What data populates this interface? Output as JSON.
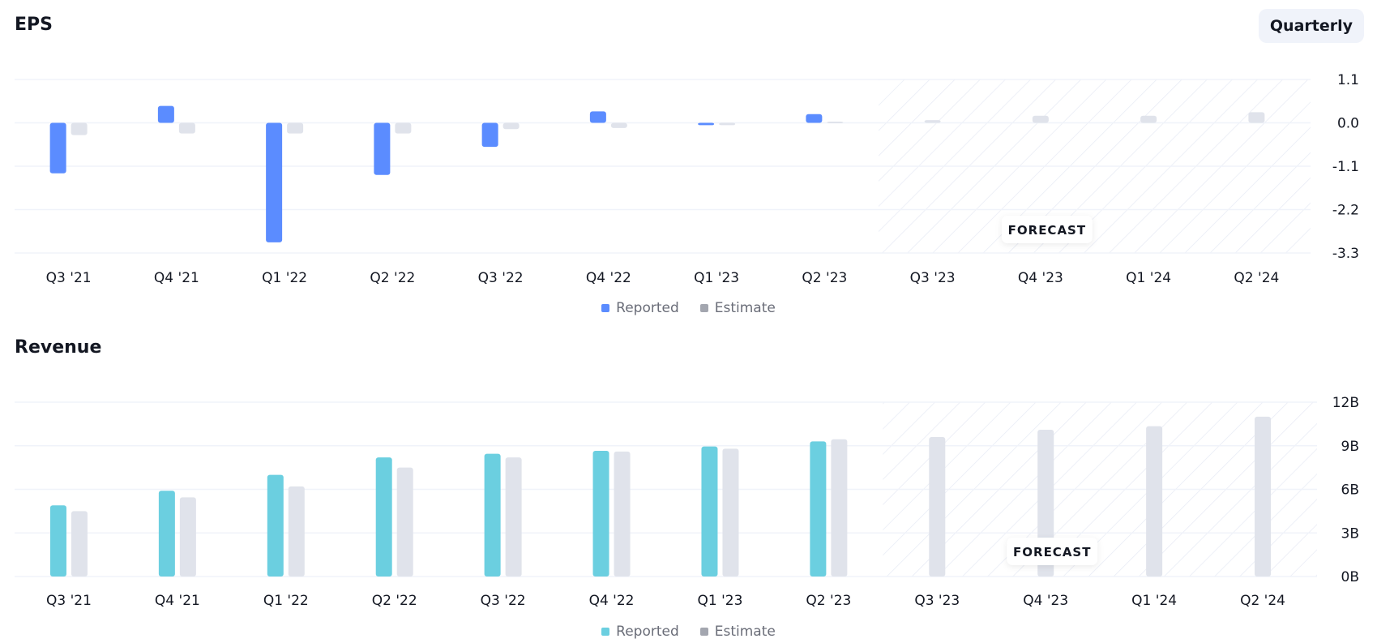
{
  "header": {
    "period_toggle": "Quarterly"
  },
  "colors": {
    "eps_reported": "#5b8cff",
    "revenue_reported": "#6bcfe0",
    "estimate": "#e0e3eb",
    "estimate_legend": "#a3a6af",
    "grid": "#f0f3fa",
    "hatch": "#e8ebf5"
  },
  "chart_data": [
    {
      "type": "bar",
      "title": "EPS",
      "categories": [
        "Q3 '21",
        "Q4 '21",
        "Q1 '22",
        "Q2 '22",
        "Q3 '22",
        "Q4 '22",
        "Q1 '23",
        "Q2 '23",
        "Q3 '23",
        "Q4 '23",
        "Q1 '24",
        "Q2 '24"
      ],
      "series": [
        {
          "name": "Reported",
          "values": [
            -1.28,
            0.43,
            -3.03,
            -1.32,
            -0.61,
            0.29,
            -0.06,
            0.22,
            null,
            null,
            null,
            null
          ]
        },
        {
          "name": "Estimate",
          "values": [
            -0.31,
            -0.27,
            -0.27,
            -0.27,
            -0.16,
            -0.13,
            -0.06,
            0.03,
            0.07,
            0.18,
            0.18,
            0.27
          ]
        }
      ],
      "ylim": [
        -3.3,
        1.1
      ],
      "yticks": [
        "1.1",
        "0.0",
        "-1.1",
        "-2.2",
        "-3.3"
      ],
      "ytick_values": [
        1.1,
        0,
        -1.1,
        -2.2,
        -3.3
      ],
      "forecast_from": "Q3 '23",
      "forecast_label": "FORECAST",
      "grid": true,
      "legend": "bottom-center"
    },
    {
      "type": "bar",
      "title": "Revenue",
      "categories": [
        "Q3 '21",
        "Q4 '21",
        "Q1 '22",
        "Q2 '22",
        "Q3 '22",
        "Q4 '22",
        "Q1 '23",
        "Q2 '23",
        "Q3 '23",
        "Q4 '23",
        "Q1 '24",
        "Q2 '24"
      ],
      "series": [
        {
          "name": "Reported",
          "values": [
            4.9,
            5.9,
            7.0,
            8.2,
            8.45,
            8.65,
            8.95,
            9.3,
            null,
            null,
            null,
            null
          ]
        },
        {
          "name": "Estimate",
          "values": [
            4.5,
            5.45,
            6.2,
            7.5,
            8.2,
            8.6,
            8.8,
            9.45,
            9.6,
            10.1,
            10.35,
            11.0
          ]
        }
      ],
      "unit": "B",
      "ylim": [
        0,
        12
      ],
      "yticks": [
        "12B",
        "9B",
        "6B",
        "3B",
        "0B"
      ],
      "ytick_values": [
        12,
        9,
        6,
        3,
        0
      ],
      "forecast_from": "Q3 '23",
      "forecast_label": "FORECAST",
      "grid": true,
      "legend": "bottom-center"
    }
  ]
}
